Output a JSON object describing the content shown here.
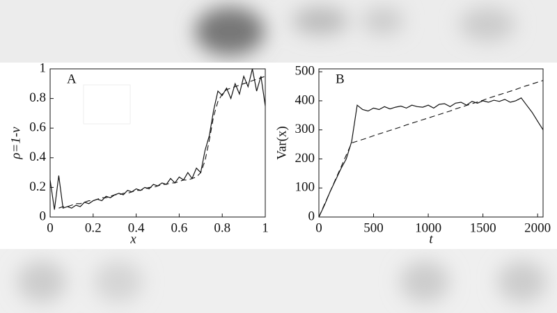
{
  "chart_data": [
    {
      "type": "line",
      "annotation": "A",
      "xlabel": "x",
      "ylabel": "ρ=1-v",
      "xlim": [
        0,
        1
      ],
      "ylim": [
        0,
        1
      ],
      "xticks": [
        0,
        0.2,
        0.4,
        0.6,
        0.8,
        1
      ],
      "yticks": [
        0,
        0.2,
        0.4,
        0.6,
        0.8,
        1
      ],
      "x": [
        0,
        0.02,
        0.04,
        0.06,
        0.08,
        0.1,
        0.12,
        0.14,
        0.16,
        0.18,
        0.2,
        0.22,
        0.24,
        0.26,
        0.28,
        0.3,
        0.32,
        0.34,
        0.36,
        0.38,
        0.4,
        0.42,
        0.44,
        0.46,
        0.48,
        0.5,
        0.52,
        0.54,
        0.56,
        0.58,
        0.6,
        0.62,
        0.64,
        0.66,
        0.68,
        0.7,
        0.72,
        0.74,
        0.76,
        0.78,
        0.8,
        0.82,
        0.84,
        0.86,
        0.88,
        0.9,
        0.92,
        0.94,
        0.96,
        0.98,
        1
      ],
      "series": [
        {
          "color": "#111111",
          "style": "solid",
          "values": [
            0.25,
            0.05,
            0.28,
            0.06,
            0.07,
            0.06,
            0.08,
            0.07,
            0.1,
            0.09,
            0.11,
            0.12,
            0.11,
            0.14,
            0.13,
            0.15,
            0.16,
            0.15,
            0.18,
            0.17,
            0.19,
            0.18,
            0.2,
            0.19,
            0.22,
            0.21,
            0.23,
            0.22,
            0.26,
            0.23,
            0.27,
            0.25,
            0.3,
            0.26,
            0.33,
            0.3,
            0.45,
            0.55,
            0.72,
            0.85,
            0.82,
            0.87,
            0.8,
            0.9,
            0.83,
            0.95,
            0.88,
            1,
            0.85,
            0.95,
            0.75
          ]
        },
        {
          "color": "#111111",
          "style": "dashed",
          "values": [
            null,
            null,
            0.06,
            0.07,
            0.07,
            0.08,
            0.09,
            0.09,
            0.1,
            0.11,
            0.11,
            0.12,
            0.13,
            0.13,
            0.14,
            0.15,
            0.15,
            0.16,
            0.16,
            0.17,
            0.18,
            0.18,
            0.19,
            0.2,
            0.2,
            0.21,
            0.22,
            0.22,
            0.23,
            0.23,
            0.24,
            0.25,
            0.25,
            0.26,
            0.27,
            0.3,
            0.38,
            0.52,
            0.68,
            0.78,
            0.83,
            0.86,
            0.87,
            0.88,
            0.89,
            0.9,
            0.91,
            0.92,
            0.93,
            0.94,
            0.95
          ]
        }
      ]
    },
    {
      "type": "line",
      "annotation": "B",
      "xlabel": "t",
      "ylabel": "Var(x)",
      "xlim": [
        0,
        2050
      ],
      "ylim": [
        0,
        510
      ],
      "xticks": [
        0,
        500,
        1000,
        1500,
        2000
      ],
      "yticks": [
        0,
        100,
        200,
        300,
        400,
        500
      ],
      "x": [
        0,
        50,
        100,
        150,
        200,
        250,
        300,
        350,
        400,
        450,
        500,
        550,
        600,
        650,
        700,
        750,
        800,
        850,
        900,
        950,
        1000,
        1050,
        1100,
        1150,
        1200,
        1250,
        1300,
        1350,
        1400,
        1450,
        1500,
        1550,
        1600,
        1650,
        1700,
        1750,
        1800,
        1850,
        1900,
        1950,
        2000,
        2050
      ],
      "series": [
        {
          "color": "#111111",
          "style": "solid",
          "values": [
            0,
            40,
            85,
            125,
            165,
            200,
            260,
            385,
            370,
            365,
            375,
            370,
            380,
            372,
            378,
            382,
            375,
            385,
            380,
            378,
            385,
            375,
            388,
            390,
            380,
            392,
            395,
            385,
            398,
            392,
            400,
            395,
            402,
            398,
            405,
            395,
            400,
            410,
            385,
            360,
            330,
            300
          ]
        },
        {
          "color": "#111111",
          "style": "dashed",
          "values": [
            0,
            43,
            85,
            128,
            170,
            213,
            255,
            261,
            267,
            273,
            280,
            286,
            292,
            298,
            304,
            310,
            317,
            323,
            329,
            335,
            341,
            347,
            353,
            359,
            365,
            372,
            378,
            384,
            390,
            396,
            402,
            409,
            415,
            421,
            427,
            433,
            439,
            446,
            452,
            458,
            464,
            470
          ]
        }
      ]
    }
  ]
}
